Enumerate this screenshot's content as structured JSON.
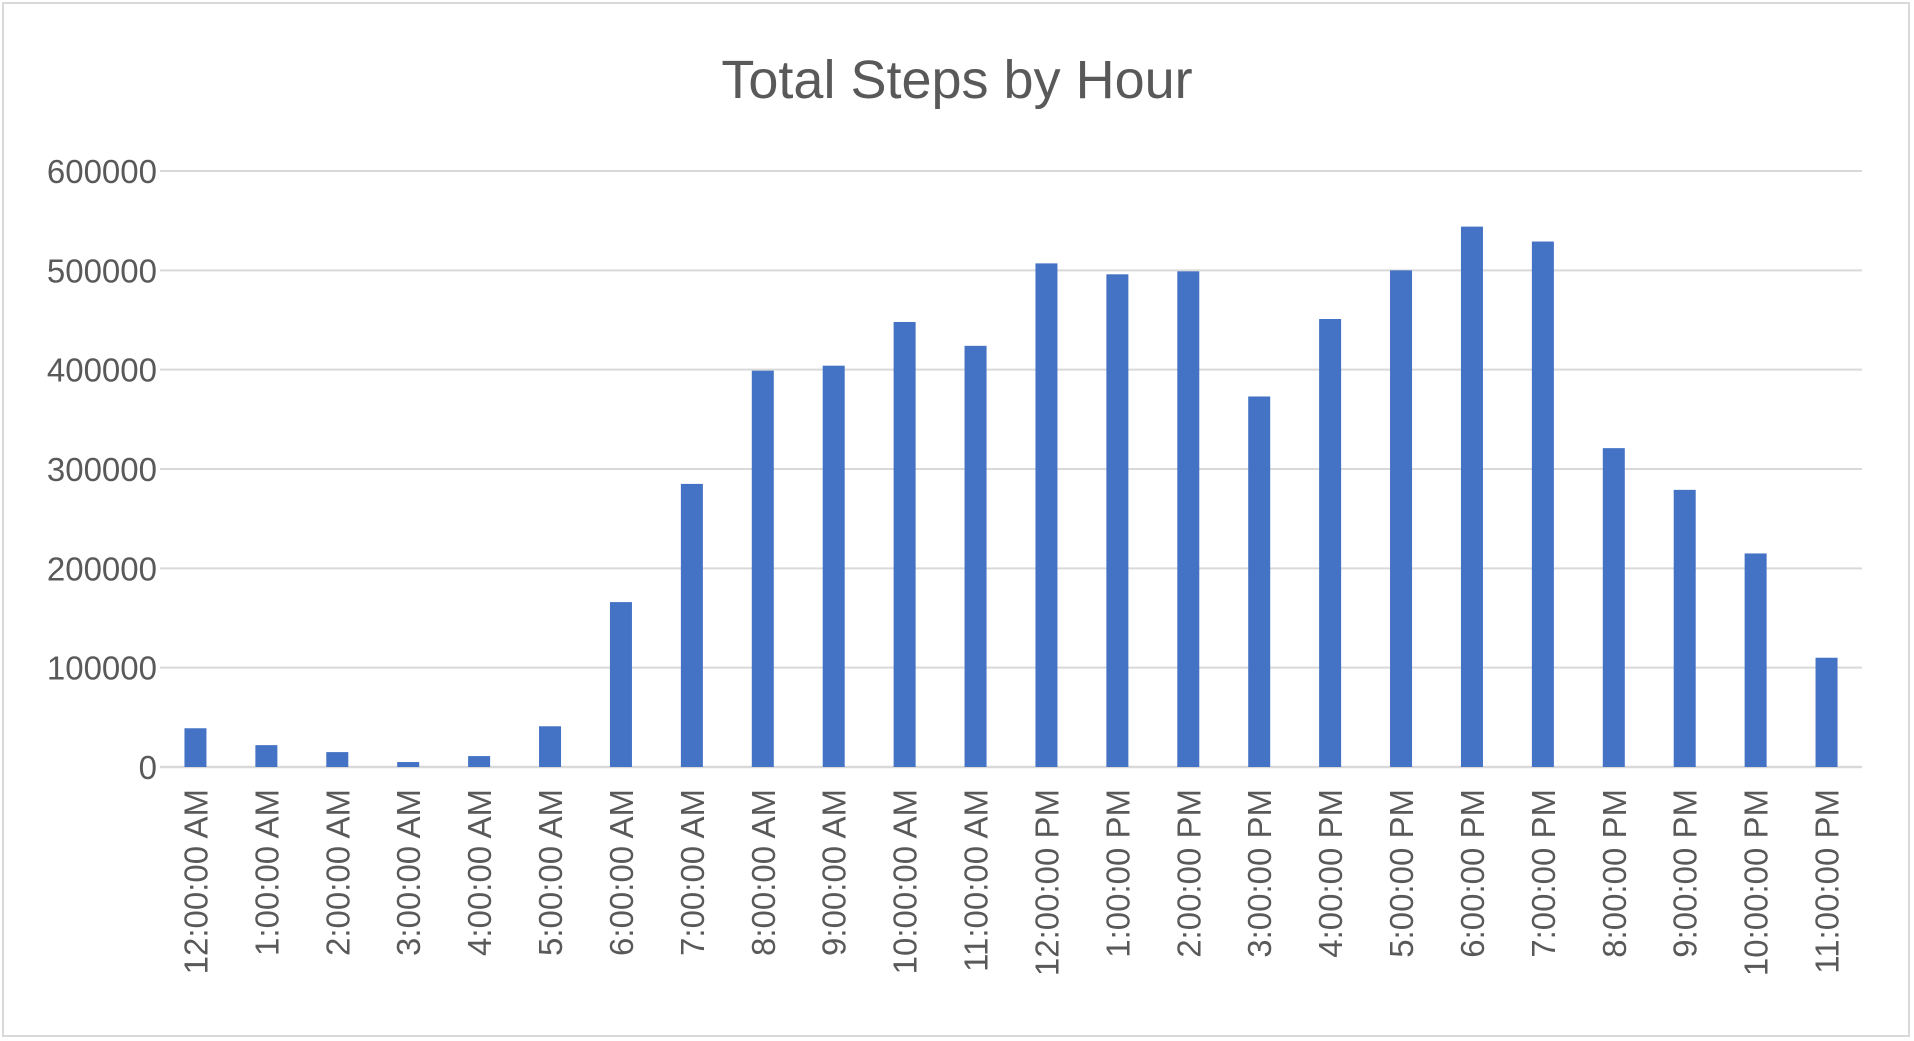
{
  "chart_data": {
    "type": "bar",
    "title": "Total Steps by Hour",
    "xlabel": "",
    "ylabel": "",
    "categories": [
      "12:00:00 AM",
      "1:00:00 AM",
      "2:00:00 AM",
      "3:00:00 AM",
      "4:00:00 AM",
      "5:00:00 AM",
      "6:00:00 AM",
      "7:00:00 AM",
      "8:00:00 AM",
      "9:00:00 AM",
      "10:00:00 AM",
      "11:00:00 AM",
      "12:00:00 PM",
      "1:00:00 PM",
      "2:00:00 PM",
      "3:00:00 PM",
      "4:00:00 PM",
      "5:00:00 PM",
      "6:00:00 PM",
      "7:00:00 PM",
      "8:00:00 PM",
      "9:00:00 PM",
      "10:00:00 PM",
      "11:00:00 PM"
    ],
    "values": [
      39000,
      22000,
      15000,
      5000,
      11000,
      41000,
      166000,
      285000,
      399000,
      404000,
      448000,
      424000,
      507000,
      496000,
      499000,
      373000,
      451000,
      500000,
      544000,
      529000,
      321000,
      279000,
      215000,
      110000
    ],
    "ylim": [
      0,
      600000
    ],
    "yticks": [
      "0",
      "100000",
      "200000",
      "300000",
      "400000",
      "500000",
      "600000"
    ],
    "grid": true,
    "legend": "none",
    "colors": {
      "bar": "#4472c4",
      "grid": "#d9d9d9",
      "text": "#595959",
      "axis": "#d9d9d9"
    }
  }
}
